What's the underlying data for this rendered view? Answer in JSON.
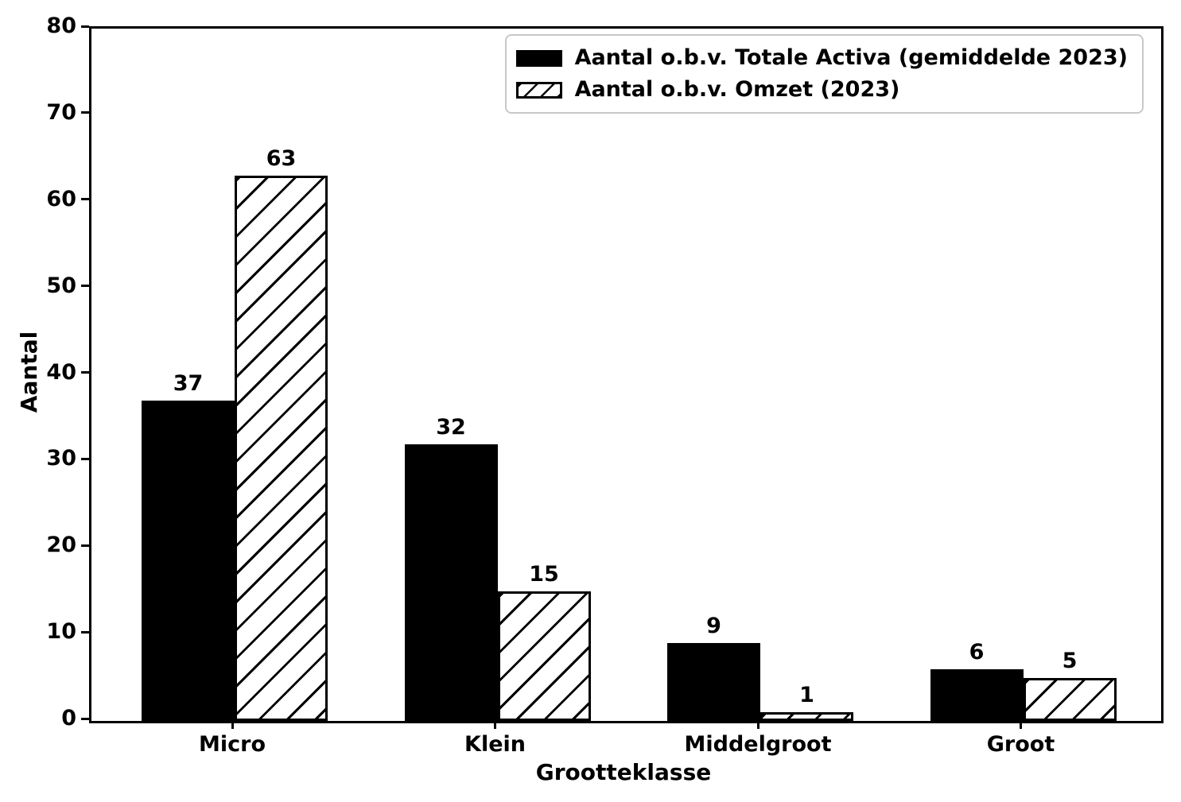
{
  "chart_data": {
    "type": "bar",
    "title": "",
    "xlabel": "Grootteklasse",
    "ylabel": "Aantal",
    "categories": [
      "Micro",
      "Klein",
      "Middelgroot",
      "Groot"
    ],
    "series": [
      {
        "name": "Aantal o.b.v. Totale Activa (gemiddelde 2023)",
        "style": "solid",
        "color": "#000000",
        "values": [
          37,
          32,
          9,
          6
        ]
      },
      {
        "name": "Aantal o.b.v. Omzet (2023)",
        "style": "hatched",
        "hatch": "/",
        "color": "#000000",
        "values": [
          63,
          15,
          1,
          5
        ]
      }
    ],
    "ylim": [
      0,
      80
    ],
    "yticks": [
      0,
      10,
      20,
      30,
      40,
      50,
      60,
      70,
      80
    ],
    "grid": false,
    "bar_labels_shown": true,
    "legend_position": "upper right",
    "colors": {
      "foreground": "#000000",
      "background": "#ffffff",
      "legend_border": "#c8c8c8"
    }
  }
}
